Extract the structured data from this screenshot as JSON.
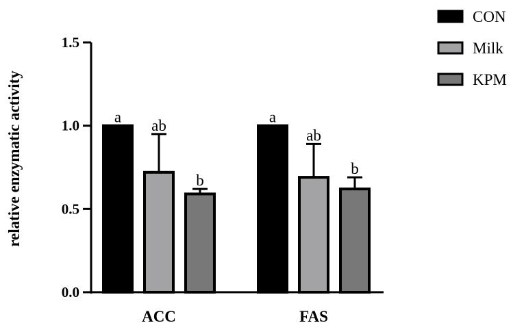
{
  "chart_data": {
    "type": "bar",
    "title": "",
    "xlabel": "",
    "ylabel": "relative enzymatic activity",
    "ylim": [
      0,
      1.5
    ],
    "yticks": [
      {
        "value": 0.0,
        "label": "0.0"
      },
      {
        "value": 0.5,
        "label": "0.5"
      },
      {
        "value": 1.0,
        "label": "1.0"
      },
      {
        "value": 1.5,
        "label": "1.5"
      }
    ],
    "categories": [
      "ACC",
      "FAS"
    ],
    "series": [
      {
        "name": "CON",
        "color": "#000000",
        "values": [
          1.0,
          1.0
        ],
        "errors": [
          0.0,
          0.0
        ],
        "labels": [
          "a",
          "a"
        ]
      },
      {
        "name": "Milk",
        "color": "#a3a3a6",
        "values": [
          0.72,
          0.69
        ],
        "errors": [
          0.23,
          0.2
        ],
        "labels": [
          "ab",
          "ab"
        ]
      },
      {
        "name": "KPM",
        "color": "#787878",
        "values": [
          0.59,
          0.62
        ],
        "errors": [
          0.03,
          0.07
        ],
        "labels": [
          "b",
          "b"
        ]
      }
    ],
    "grid": false,
    "legend": "top-right"
  }
}
